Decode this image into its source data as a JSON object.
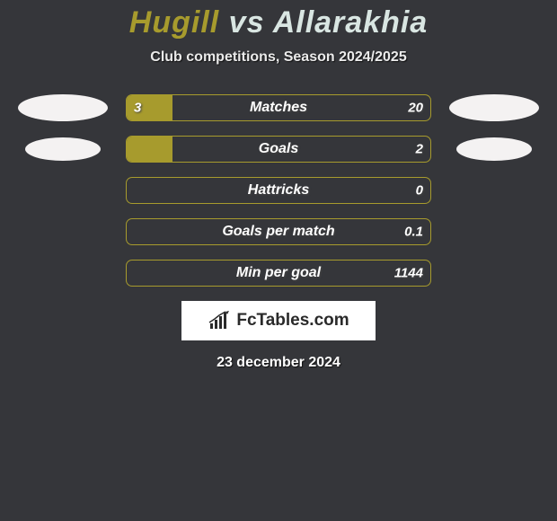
{
  "colors": {
    "background": "#35363a",
    "accent": "#a79b2d",
    "light": "#d9e6e2",
    "text": "#ffffff",
    "avatar": "#f4f2f2",
    "logo_bg": "#ffffff",
    "logo_text": "#2a2a2a"
  },
  "header": {
    "player1": "Hugill",
    "vs": "vs",
    "player2": "Allarakhia",
    "subtitle": "Club competitions, Season 2024/2025"
  },
  "bars": [
    {
      "label": "Matches",
      "left": "3",
      "right": "20",
      "fill_pct": 15,
      "show_left_avatar": true,
      "show_right_avatar": true,
      "avatar_shrink": false
    },
    {
      "label": "Goals",
      "left": "",
      "right": "2",
      "fill_pct": 15,
      "show_left_avatar": true,
      "show_right_avatar": true,
      "avatar_shrink": true
    },
    {
      "label": "Hattricks",
      "left": "",
      "right": "0",
      "fill_pct": 0,
      "show_left_avatar": false,
      "show_right_avatar": false,
      "avatar_shrink": false
    },
    {
      "label": "Goals per match",
      "left": "",
      "right": "0.1",
      "fill_pct": 0,
      "show_left_avatar": false,
      "show_right_avatar": false,
      "avatar_shrink": false
    },
    {
      "label": "Min per goal",
      "left": "",
      "right": "1144",
      "fill_pct": 0,
      "show_left_avatar": false,
      "show_right_avatar": false,
      "avatar_shrink": false
    }
  ],
  "footer": {
    "logo_text": "FcTables.com",
    "date": "23 december 2024"
  }
}
